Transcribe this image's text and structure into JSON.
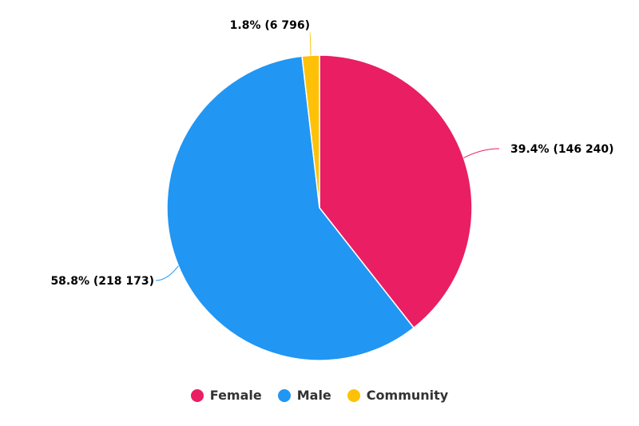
{
  "chart_data": {
    "type": "pie",
    "title": "",
    "legend_position": "bottom",
    "slices": [
      {
        "name": "Female",
        "percent": 39.4,
        "value": 146240,
        "label": "39.4% (146 240)",
        "color": "#e91e63"
      },
      {
        "name": "Male",
        "percent": 58.8,
        "value": 218173,
        "label": "58.8% (218 173)",
        "color": "#2196f3"
      },
      {
        "name": "Community",
        "percent": 1.8,
        "value": 6796,
        "label": "1.8% (6 796)",
        "color": "#ffc107"
      }
    ]
  },
  "legend": {
    "items": [
      {
        "label": "Female",
        "color": "#e91e63"
      },
      {
        "label": "Male",
        "color": "#2196f3"
      },
      {
        "label": "Community",
        "color": "#ffc107"
      }
    ]
  }
}
